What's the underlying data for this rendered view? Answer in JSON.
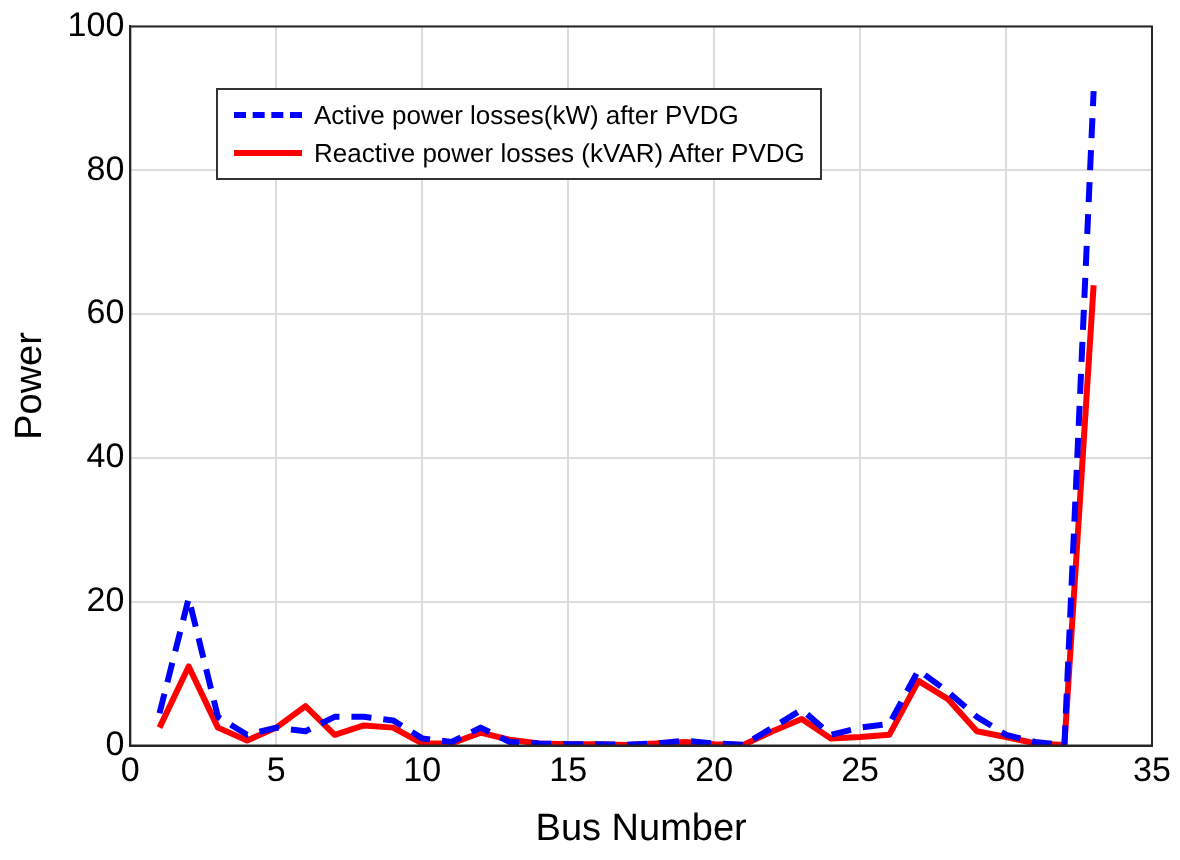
{
  "chart_data": {
    "type": "line",
    "xlabel": "Bus Number",
    "ylabel": "Power",
    "x": [
      1,
      2,
      3,
      4,
      5,
      6,
      7,
      8,
      9,
      10,
      11,
      12,
      13,
      14,
      15,
      16,
      17,
      18,
      19,
      20,
      21,
      22,
      23,
      24,
      25,
      26,
      27,
      28,
      29,
      30,
      31,
      32,
      33
    ],
    "series": [
      {
        "name": "Active power losses(kW) after PVDG",
        "color": "#0000ff",
        "line_style": "dashed",
        "values": [
          4.5,
          20.5,
          4,
          1.5,
          2.5,
          2,
          4,
          4,
          3.5,
          1,
          0.5,
          2.5,
          0.5,
          0.3,
          0.2,
          0.2,
          0.1,
          0.3,
          0.7,
          0.3,
          0.1,
          2.5,
          5,
          1.5,
          2.5,
          3,
          10.5,
          7.5,
          4,
          1.5,
          0.5,
          0.1,
          91
        ]
      },
      {
        "name": "Reactive power losses (kVAR) After PVDG",
        "color": "#ff0000",
        "line_style": "solid",
        "values": [
          2.5,
          11,
          2.5,
          0.7,
          2.5,
          5.5,
          1.5,
          2.8,
          2.5,
          0.3,
          0.3,
          1.8,
          0.8,
          0.3,
          0.2,
          0.2,
          0.1,
          0.3,
          0.5,
          0.2,
          0.1,
          2,
          3.7,
          1,
          1.2,
          1.5,
          9,
          6.5,
          2,
          1.2,
          0.3,
          0.1,
          64
        ]
      }
    ],
    "xlim": [
      0,
      35
    ],
    "xticks": [
      0,
      5,
      10,
      15,
      20,
      25,
      30,
      35
    ],
    "ylim": [
      0,
      100
    ],
    "yticks": [
      0,
      20,
      40,
      60,
      80,
      100
    ],
    "grid": true,
    "legend": "top left",
    "marker": "none"
  }
}
